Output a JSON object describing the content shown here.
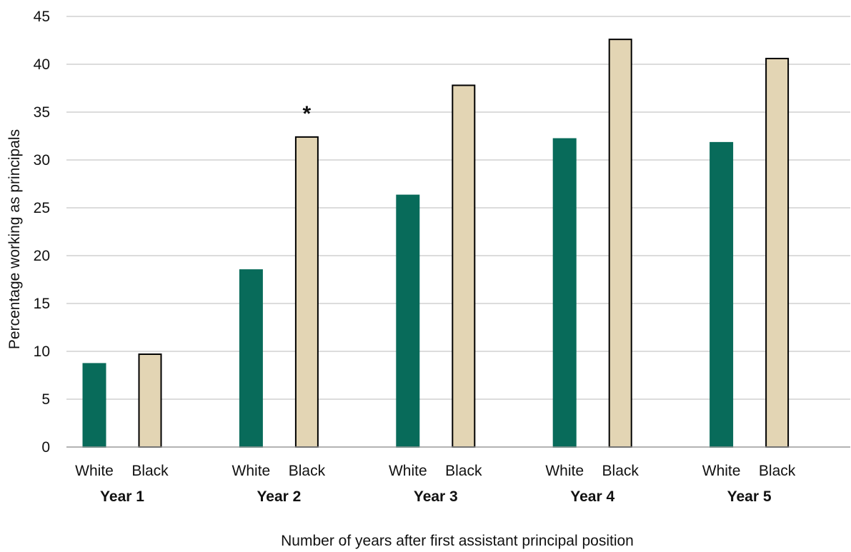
{
  "chart_data": {
    "type": "bar",
    "title": "",
    "xlabel": "Number of years after first assistant principal position",
    "ylabel": "Percentage working as principals",
    "ylim": [
      0,
      45
    ],
    "yticks": [
      0,
      5,
      10,
      15,
      20,
      25,
      30,
      35,
      40,
      45
    ],
    "grid": true,
    "legend": "none",
    "groups": [
      "Year 1",
      "Year 2",
      "Year 3",
      "Year 4",
      "Year 5"
    ],
    "series": [
      {
        "name": "White",
        "color": "#086B5A",
        "outline": "#086B5A",
        "values": [
          8.7,
          18.5,
          26.3,
          32.2,
          31.8
        ]
      },
      {
        "name": "Black",
        "color": "#E3D5B4",
        "outline": "#000000",
        "values": [
          9.7,
          32.4,
          37.8,
          42.6,
          40.6
        ]
      }
    ],
    "annotations": [
      {
        "text": "*",
        "group": "Year 2",
        "series": "Black"
      }
    ]
  }
}
